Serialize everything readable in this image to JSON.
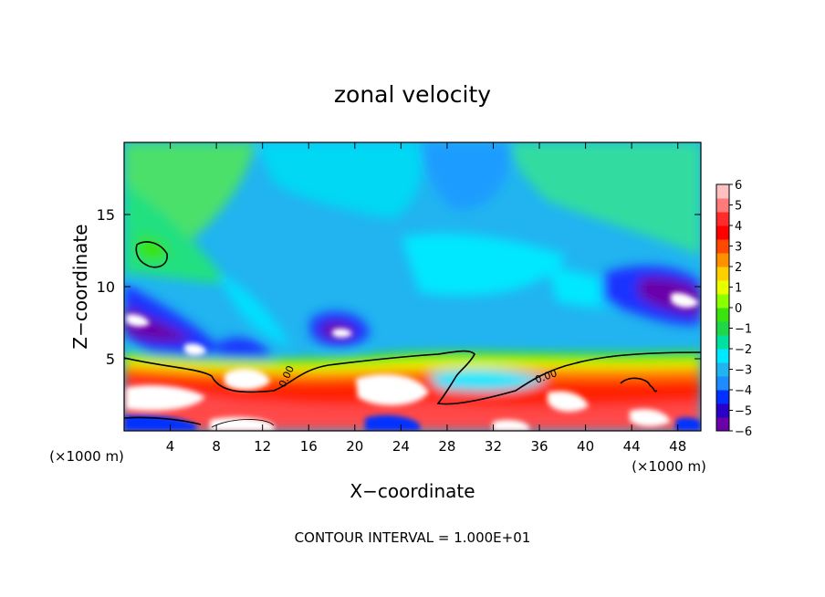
{
  "chart_data": {
    "type": "heatmap",
    "title": "zonal velocity",
    "xlabel": "X−coordinate",
    "ylabel": "Z−coordinate",
    "x_unit_left": "(×1000 m)",
    "x_unit_right": "(×1000 m)",
    "footer": "CONTOUR INTERVAL = 1.000E+01",
    "xlim": [
      0,
      50
    ],
    "ylim": [
      0,
      20
    ],
    "x_ticks": [
      4,
      8,
      12,
      16,
      20,
      24,
      28,
      32,
      36,
      40,
      44,
      48
    ],
    "x_tick_labels": [
      "4",
      "8",
      "12",
      "16",
      "20",
      "24",
      "28",
      "32",
      "36",
      "40",
      "44",
      "48"
    ],
    "y_ticks": [
      5,
      10,
      15
    ],
    "y_tick_labels": [
      "5",
      "10",
      "15"
    ],
    "colorbar": {
      "min": -6,
      "max": 6,
      "ticks": [
        6,
        5,
        4,
        3,
        2,
        1,
        0,
        -1,
        -2,
        -3,
        -4,
        -5,
        -6
      ],
      "tick_labels": [
        "6",
        "5",
        "4",
        "3",
        "2",
        "1",
        "0",
        "−1",
        "−2",
        "−3",
        "−4",
        "−5",
        "−6"
      ],
      "colors": [
        "#6a00a8",
        "#2a00c8",
        "#0030ff",
        "#1c8cff",
        "#21b4f0",
        "#00e8ff",
        "#00e0a0",
        "#22d64a",
        "#39e30f",
        "#8cff00",
        "#e8ff00",
        "#ffd000",
        "#ff9000",
        "#ff4800",
        "#ff0000",
        "#ff2a2a",
        "#ff7a7a",
        "#ffc0c0"
      ]
    },
    "contour_labels": [
      "0.00",
      "0.00"
    ]
  }
}
